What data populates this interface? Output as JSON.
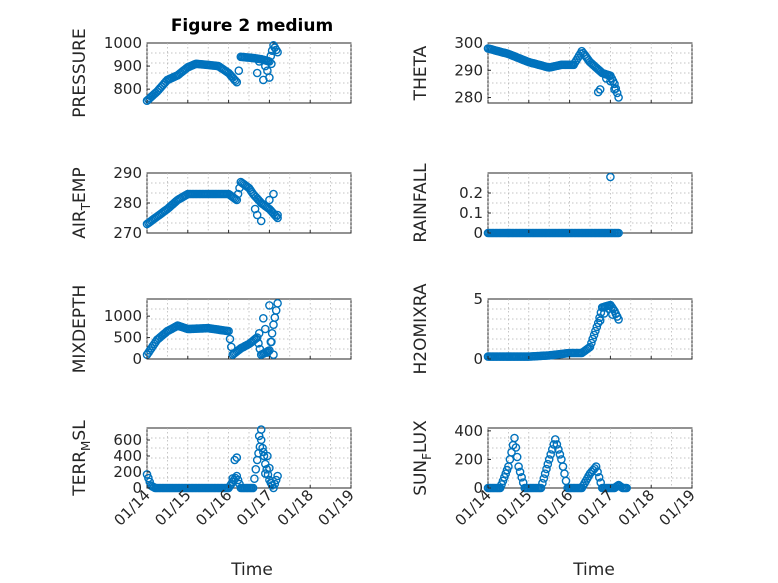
{
  "figure": {
    "title": "Figure 2 medium"
  },
  "chart_data": {
    "type": "scatter",
    "marker": "circle-open",
    "color": "#0072BD",
    "grid": true,
    "x_ticks": [
      "01/14",
      "01/15",
      "01/16",
      "01/17",
      "01/18",
      "01/19"
    ],
    "x_label": "Time",
    "x_range": [
      0,
      5
    ],
    "panels": [
      {
        "id": "pressure",
        "ylabel": "PRESSURE",
        "ylim": [
          740,
          1000
        ],
        "yticks": [
          800,
          900,
          1000
        ],
        "keys": [
          [
            0,
            750
          ],
          [
            0.25,
            790
          ],
          [
            0.5,
            840
          ],
          [
            0.75,
            860
          ],
          [
            1.0,
            895
          ],
          [
            1.2,
            910
          ],
          [
            1.5,
            905
          ],
          [
            1.75,
            900
          ],
          [
            2.0,
            870
          ],
          [
            2.2,
            830
          ],
          [
            2.25,
            880
          ],
          [
            2.3,
            940
          ],
          [
            2.6,
            935
          ],
          [
            2.8,
            930
          ],
          [
            3.0,
            920
          ],
          [
            3.1,
            990
          ],
          [
            3.2,
            960
          ]
        ],
        "scatter": [
          [
            2.7,
            870
          ],
          [
            2.85,
            840
          ],
          [
            2.95,
            880
          ],
          [
            3.0,
            850
          ],
          [
            2.9,
            900
          ],
          [
            3.05,
            910
          ],
          [
            2.75,
            920
          ]
        ]
      },
      {
        "id": "theta",
        "ylabel": "THETA",
        "ylim": [
          278,
          300
        ],
        "yticks": [
          280,
          290,
          300
        ],
        "keys": [
          [
            0,
            298
          ],
          [
            0.5,
            296
          ],
          [
            1.0,
            293
          ],
          [
            1.5,
            291
          ],
          [
            1.8,
            292
          ],
          [
            2.1,
            292
          ],
          [
            2.3,
            297
          ],
          [
            2.5,
            293
          ],
          [
            2.8,
            289
          ],
          [
            3.0,
            288
          ],
          [
            3.1,
            285
          ],
          [
            3.2,
            280
          ]
        ],
        "scatter": [
          [
            2.75,
            283
          ],
          [
            2.7,
            282
          ],
          [
            3.1,
            283
          ],
          [
            2.9,
            287
          ],
          [
            3.0,
            286
          ]
        ]
      },
      {
        "id": "air_temp",
        "ylabel": "AIR_TEMP",
        "ylabel_parts": [
          "AIR",
          "T",
          "EMP"
        ],
        "ylim": [
          270,
          290
        ],
        "yticks": [
          270,
          280,
          290
        ],
        "keys": [
          [
            0,
            273
          ],
          [
            0.5,
            278
          ],
          [
            0.75,
            281
          ],
          [
            1.0,
            283
          ],
          [
            1.5,
            283
          ],
          [
            2.0,
            283
          ],
          [
            2.2,
            281
          ],
          [
            2.3,
            287
          ],
          [
            2.5,
            285
          ],
          [
            2.6,
            283
          ],
          [
            2.8,
            280
          ],
          [
            3.0,
            278
          ],
          [
            3.2,
            275
          ]
        ],
        "scatter": [
          [
            2.7,
            276
          ],
          [
            2.8,
            274
          ],
          [
            2.9,
            279
          ],
          [
            3.0,
            281
          ],
          [
            3.1,
            283
          ],
          [
            3.2,
            276
          ],
          [
            2.65,
            278
          ]
        ]
      },
      {
        "id": "rainfall",
        "ylabel": "RAINFALL",
        "ylim": [
          0,
          0.3
        ],
        "yticks": [
          0,
          0.1,
          0.2
        ],
        "keys": [
          [
            0,
            0
          ],
          [
            3.2,
            0
          ]
        ],
        "scatter": [
          [
            3.0,
            0.28
          ]
        ]
      },
      {
        "id": "mixdepth",
        "ylabel": "MIXDEPTH",
        "ylim": [
          0,
          1400
        ],
        "yticks": [
          0,
          500,
          1000
        ],
        "keys": [
          [
            0,
            100
          ],
          [
            0.25,
            450
          ],
          [
            0.5,
            650
          ],
          [
            0.75,
            780
          ],
          [
            1.0,
            700
          ],
          [
            1.5,
            720
          ],
          [
            2.0,
            650
          ],
          [
            2.1,
            100
          ],
          [
            2.3,
            250
          ],
          [
            2.5,
            350
          ],
          [
            2.7,
            500
          ],
          [
            2.8,
            100
          ],
          [
            3.0,
            200
          ],
          [
            3.1,
            800
          ],
          [
            3.2,
            1300
          ]
        ],
        "scatter": [
          [
            2.85,
            950
          ],
          [
            2.9,
            700
          ],
          [
            3.0,
            1250
          ],
          [
            3.05,
            400
          ],
          [
            2.95,
            150
          ],
          [
            3.1,
            100
          ],
          [
            2.75,
            600
          ]
        ]
      },
      {
        "id": "h2omixra",
        "ylabel": "H2OMIXRA",
        "ylim": [
          0,
          5
        ],
        "yticks": [
          0,
          5
        ],
        "keys": [
          [
            0,
            0.2
          ],
          [
            1.0,
            0.2
          ],
          [
            1.5,
            0.3
          ],
          [
            2.0,
            0.5
          ],
          [
            2.3,
            0.5
          ],
          [
            2.5,
            1.0
          ],
          [
            2.7,
            3.0
          ],
          [
            2.8,
            4.3
          ],
          [
            3.0,
            4.5
          ],
          [
            3.1,
            4.0
          ],
          [
            3.2,
            3.3
          ]
        ],
        "scatter": [
          [
            2.75,
            3.2
          ],
          [
            2.85,
            3.8
          ],
          [
            2.95,
            4.2
          ],
          [
            3.05,
            3.7
          ]
        ]
      },
      {
        "id": "terr_msl",
        "ylabel": "TERR_MSL",
        "ylabel_parts": [
          "TERR",
          "M",
          "SL"
        ],
        "ylim": [
          0,
          750
        ],
        "yticks": [
          0,
          200,
          400,
          600
        ],
        "keys": [
          [
            0,
            170
          ],
          [
            0.1,
            30
          ],
          [
            0.2,
            0
          ],
          [
            2.0,
            0
          ],
          [
            2.2,
            150
          ],
          [
            2.3,
            0
          ],
          [
            2.6,
            0
          ],
          [
            2.7,
            350
          ],
          [
            2.8,
            600
          ],
          [
            2.9,
            300
          ],
          [
            3.0,
            100
          ],
          [
            3.1,
            0
          ],
          [
            3.2,
            150
          ]
        ],
        "scatter": [
          [
            2.15,
            350
          ],
          [
            2.2,
            380
          ],
          [
            2.8,
            730
          ],
          [
            2.75,
            650
          ],
          [
            2.85,
            450
          ],
          [
            2.95,
            400
          ],
          [
            3.0,
            250
          ],
          [
            2.9,
            180
          ],
          [
            3.05,
            60
          ],
          [
            2.1,
            120
          ]
        ]
      },
      {
        "id": "sun_flux",
        "ylabel": "SUN_FLUX",
        "ylabel_parts": [
          "SUN",
          "F",
          "LUX"
        ],
        "ylim": [
          0,
          420
        ],
        "yticks": [
          0,
          200,
          400
        ],
        "keys": [
          [
            0,
            0
          ],
          [
            0.3,
            0
          ],
          [
            0.5,
            150
          ],
          [
            0.65,
            350
          ],
          [
            0.75,
            150
          ],
          [
            0.9,
            0
          ],
          [
            1.3,
            0
          ],
          [
            1.5,
            200
          ],
          [
            1.65,
            340
          ],
          [
            1.8,
            200
          ],
          [
            1.95,
            0
          ],
          [
            2.3,
            0
          ],
          [
            2.5,
            100
          ],
          [
            2.65,
            150
          ],
          [
            2.8,
            0
          ],
          [
            3.1,
            0
          ],
          [
            3.2,
            20
          ],
          [
            3.3,
            0
          ],
          [
            3.4,
            0
          ]
        ]
      }
    ]
  }
}
